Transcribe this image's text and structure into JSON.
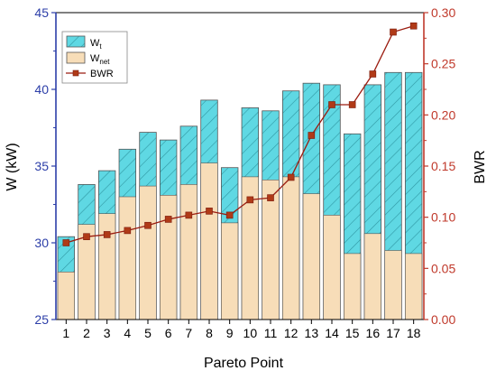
{
  "chart_data": {
    "type": "bar",
    "title": "",
    "xlabel": "Pareto Point",
    "ylabel_left": "W (kW)",
    "ylabel_right": "BWR",
    "ylim_left": [
      25,
      45
    ],
    "ylim_right": [
      0.0,
      0.3
    ],
    "yticks_left": [
      "25",
      "30",
      "35",
      "40",
      "45"
    ],
    "yticks_right": [
      "0.00",
      "0.05",
      "0.10",
      "0.15",
      "0.20",
      "0.25",
      "0.30"
    ],
    "categories": [
      "1",
      "2",
      "3",
      "4",
      "5",
      "6",
      "7",
      "8",
      "9",
      "10",
      "11",
      "12",
      "13",
      "14",
      "15",
      "16",
      "17",
      "18"
    ],
    "series": [
      {
        "name": "Wt",
        "axis": "left",
        "type": "bar",
        "color": "#5fd8e3",
        "values": [
          30.4,
          33.8,
          34.7,
          36.1,
          37.2,
          36.7,
          37.6,
          39.3,
          34.9,
          38.8,
          38.6,
          39.9,
          40.4,
          40.3,
          37.1,
          40.3,
          41.1,
          41.1
        ]
      },
      {
        "name": "Wnet",
        "axis": "left",
        "type": "bar",
        "color": "#f7ddb8",
        "values": [
          28.1,
          31.2,
          31.9,
          33.0,
          33.7,
          33.1,
          33.8,
          35.2,
          31.3,
          34.3,
          34.1,
          34.3,
          33.2,
          31.8,
          29.3,
          30.6,
          29.5,
          29.3
        ]
      },
      {
        "name": "BWR",
        "axis": "right",
        "type": "line",
        "color": "#9b1c10",
        "values": [
          0.075,
          0.081,
          0.083,
          0.087,
          0.092,
          0.098,
          0.102,
          0.106,
          0.102,
          0.117,
          0.119,
          0.139,
          0.18,
          0.21,
          0.21,
          0.24,
          0.281,
          0.287
        ]
      }
    ],
    "legend_position": "top-left",
    "grid": false
  },
  "legend": {
    "wt_base": "W",
    "wt_sub": "t",
    "wnet_base": "W",
    "wnet_sub": "net",
    "bwr": "BWR"
  },
  "colors": {
    "axis_left": "#2c3ea8",
    "axis_right": "#c0392b",
    "hatch": "#2f97a3",
    "bar_edge": "#555555",
    "line": "#9b1c10",
    "marker": "#b03a17"
  }
}
